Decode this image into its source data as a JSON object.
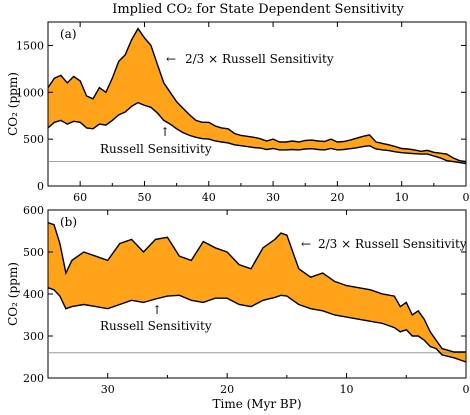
{
  "chart_data": [
    {
      "type": "area",
      "panel_label": "(a)",
      "title": "Implied CO₂ for State Dependent Sensitivity",
      "xlabel": "",
      "ylabel": "CO₂ (ppm)",
      "x_reversed": true,
      "xlim": [
        65,
        0
      ],
      "ylim": [
        0,
        1750
      ],
      "xticks": [
        60,
        50,
        40,
        30,
        20,
        10,
        0
      ],
      "yticks": [
        0,
        500,
        1000,
        1500
      ],
      "reference_line": 260,
      "series": [
        {
          "name": "2/3 × Russell Sensitivity",
          "x": [
            65,
            64,
            63,
            62,
            61,
            60,
            59,
            58,
            57,
            56,
            55,
            54,
            53,
            52,
            51,
            50,
            49,
            48,
            47,
            46,
            45,
            44,
            43,
            42,
            41,
            40,
            39,
            38,
            37,
            36,
            35,
            34,
            33,
            32,
            31,
            30,
            29,
            28,
            27,
            26,
            25,
            24,
            23,
            22,
            21,
            20,
            19,
            18,
            17,
            16,
            15,
            14,
            13,
            12,
            11,
            10,
            9,
            8,
            7,
            6,
            5,
            4,
            3,
            2,
            1,
            0
          ],
          "values": [
            1050,
            1150,
            1180,
            1100,
            1170,
            1120,
            960,
            930,
            1050,
            1000,
            1150,
            1330,
            1400,
            1560,
            1680,
            1580,
            1500,
            1300,
            1100,
            1000,
            900,
            830,
            760,
            700,
            680,
            680,
            640,
            620,
            610,
            560,
            540,
            530,
            520,
            505,
            480,
            500,
            470,
            470,
            480,
            470,
            485,
            490,
            480,
            475,
            500,
            470,
            475,
            490,
            510,
            530,
            545,
            470,
            455,
            440,
            420,
            400,
            395,
            385,
            370,
            380,
            360,
            350,
            340,
            300,
            270,
            260
          ]
        },
        {
          "name": "Russell Sensitivity",
          "x": [
            65,
            64,
            63,
            62,
            61,
            60,
            59,
            58,
            57,
            56,
            55,
            54,
            53,
            52,
            51,
            50,
            49,
            48,
            47,
            46,
            45,
            44,
            43,
            42,
            41,
            40,
            39,
            38,
            37,
            36,
            35,
            34,
            33,
            32,
            31,
            30,
            29,
            28,
            27,
            26,
            25,
            24,
            23,
            22,
            21,
            20,
            19,
            18,
            17,
            16,
            15,
            14,
            13,
            12,
            11,
            10,
            9,
            8,
            7,
            6,
            5,
            4,
            3,
            2,
            1,
            0
          ],
          "values": [
            620,
            680,
            700,
            660,
            690,
            680,
            620,
            610,
            660,
            650,
            700,
            760,
            790,
            850,
            890,
            860,
            840,
            780,
            700,
            660,
            610,
            570,
            540,
            520,
            505,
            500,
            480,
            470,
            460,
            440,
            430,
            420,
            410,
            405,
            390,
            400,
            385,
            385,
            390,
            385,
            395,
            398,
            390,
            385,
            400,
            385,
            390,
            398,
            408,
            420,
            430,
            395,
            385,
            378,
            365,
            355,
            350,
            345,
            340,
            340,
            320,
            300,
            270,
            260,
            250,
            240
          ]
        }
      ]
    },
    {
      "type": "area",
      "panel_label": "(b)",
      "title": "",
      "xlabel": "Time (Myr BP)",
      "ylabel": "CO₂ (ppm)",
      "x_reversed": true,
      "xlim": [
        35,
        0
      ],
      "ylim": [
        200,
        600
      ],
      "xticks": [
        30,
        20,
        10,
        0
      ],
      "yticks": [
        200,
        300,
        400,
        500,
        600
      ],
      "reference_line": 260,
      "series": [
        {
          "name": "2/3 × Russell Sensitivity",
          "x": [
            35,
            34.5,
            34,
            33.5,
            33,
            32,
            31,
            30,
            29,
            28,
            27,
            26,
            25,
            24,
            23,
            22,
            21,
            20,
            19,
            18,
            17,
            16,
            15.5,
            15,
            14.5,
            14,
            13,
            12,
            11,
            10,
            9,
            8,
            7,
            6,
            5.5,
            5,
            4.5,
            4,
            3.5,
            3,
            2.5,
            2,
            1,
            0
          ],
          "values": [
            570,
            565,
            520,
            450,
            480,
            500,
            490,
            480,
            520,
            530,
            500,
            530,
            535,
            490,
            480,
            525,
            510,
            500,
            470,
            460,
            510,
            530,
            545,
            540,
            500,
            460,
            440,
            450,
            430,
            420,
            415,
            410,
            400,
            395,
            370,
            380,
            350,
            360,
            340,
            310,
            290,
            270,
            262,
            262
          ]
        },
        {
          "name": "Russell Sensitivity",
          "x": [
            35,
            34.5,
            34,
            33.5,
            33,
            32,
            31,
            30,
            29,
            28,
            27,
            26,
            25,
            24,
            23,
            22,
            21,
            20,
            19,
            18,
            17,
            16,
            15.5,
            15,
            14.5,
            14,
            13,
            12,
            11,
            10,
            9,
            8,
            7,
            6,
            5.5,
            5,
            4.5,
            4,
            3.5,
            3,
            2.5,
            2,
            1,
            0
          ],
          "values": [
            415,
            410,
            395,
            365,
            370,
            375,
            370,
            365,
            375,
            385,
            380,
            388,
            395,
            397,
            385,
            380,
            390,
            390,
            375,
            370,
            385,
            392,
            397,
            395,
            385,
            375,
            365,
            360,
            350,
            345,
            340,
            335,
            330,
            320,
            310,
            315,
            300,
            300,
            290,
            275,
            270,
            255,
            248,
            238
          ]
        }
      ]
    }
  ],
  "annotations": {
    "a_upper": "2/3 × Russell Sensitivity",
    "a_lower": "Russell Sensitivity",
    "b_upper": "2/3 × Russell Sensitivity",
    "b_lower": "Russell Sensitivity"
  },
  "colors": {
    "fill": "#ffa31a",
    "line": "#000000",
    "reference": "#888888"
  }
}
